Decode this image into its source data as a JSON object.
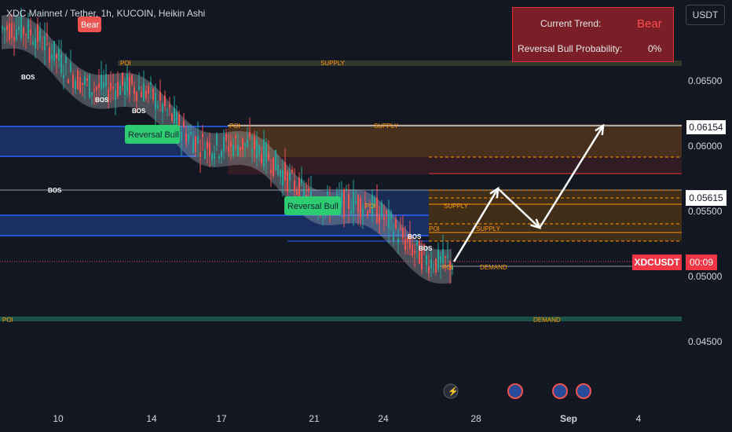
{
  "header": {
    "title": "XDC Mainnet / Tether, 1h, KUCOIN, Heikin Ashi",
    "currency_button": "USDT"
  },
  "trend_panel": {
    "current_trend_label": "Current Trend:",
    "current_trend_value": "Bear",
    "reversal_label": "Reversal Bull Probability:",
    "reversal_value": "0%"
  },
  "price_tags": {
    "level_1": "0.06154",
    "level_2": "0.05615",
    "symbol": "XDCUSDT",
    "countdown": "00:09"
  },
  "labels": {
    "bear": "Bear",
    "bos": "BOS",
    "poi": "POI",
    "supply": "SUPPLY",
    "demand": "DEMAND",
    "reversal_bull": "Reversal Bull"
  },
  "chart_data": {
    "type": "candlestick",
    "symbol": "XDCUSDT",
    "interval": "1h",
    "style": "Heikin Ashi",
    "y_ticks": [
      "0.06500",
      "0.06000",
      "0.05500",
      "0.05000",
      "0.04500"
    ],
    "x_ticks": [
      "10",
      "14",
      "17",
      "21",
      "24",
      "28",
      "Sep",
      "4"
    ],
    "ylim": [
      0.0425,
      0.0715
    ],
    "last_price": 0.051,
    "levels": [
      0.06154,
      0.05615
    ],
    "projected_path": [
      {
        "date": "26",
        "price": 0.051
      },
      {
        "date": "29",
        "price": 0.0564
      },
      {
        "date": "31",
        "price": 0.0535
      },
      {
        "date": "Sep 3",
        "price": 0.0615
      }
    ],
    "colors": {
      "up": "#26a69a",
      "down": "#ef5350",
      "supply": "#ff9800",
      "demand_zone": "#2962ff",
      "trend_box": "#7a1f27"
    }
  }
}
